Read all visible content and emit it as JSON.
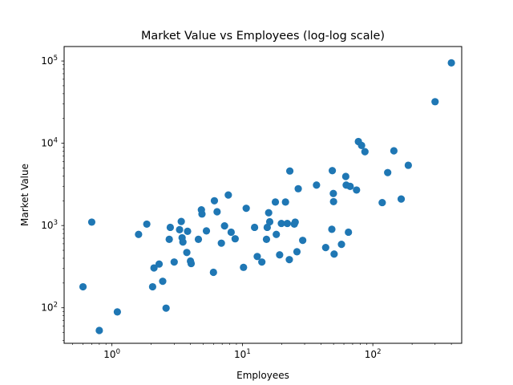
{
  "chart_data": {
    "type": "scatter",
    "title": "Market Value vs Employees (log-log scale)",
    "xlabel": "Employees",
    "ylabel": "Market Value",
    "xscale": "log",
    "yscale": "log",
    "xlim": [
      0.43,
      480
    ],
    "ylim": [
      37,
      150000
    ],
    "grid": false,
    "marker_color": "#1f77b4",
    "x_ticks": [
      {
        "base": "10",
        "exp": "0",
        "value": 1
      },
      {
        "base": "10",
        "exp": "1",
        "value": 10
      },
      {
        "base": "10",
        "exp": "2",
        "value": 100
      }
    ],
    "y_ticks": [
      {
        "base": "10",
        "exp": "2",
        "value": 100
      },
      {
        "base": "10",
        "exp": "3",
        "value": 1000
      },
      {
        "base": "10",
        "exp": "4",
        "value": 10000
      },
      {
        "base": "10",
        "exp": "5",
        "value": 100000
      }
    ],
    "points": [
      {
        "x": 0.6,
        "y": 180
      },
      {
        "x": 0.7,
        "y": 1100
      },
      {
        "x": 0.8,
        "y": 53
      },
      {
        "x": 1.1,
        "y": 89
      },
      {
        "x": 1.6,
        "y": 780
      },
      {
        "x": 1.85,
        "y": 1040
      },
      {
        "x": 2.05,
        "y": 180
      },
      {
        "x": 2.1,
        "y": 305
      },
      {
        "x": 2.3,
        "y": 340
      },
      {
        "x": 2.45,
        "y": 210
      },
      {
        "x": 2.6,
        "y": 99
      },
      {
        "x": 2.75,
        "y": 680
      },
      {
        "x": 2.8,
        "y": 950
      },
      {
        "x": 3.0,
        "y": 360
      },
      {
        "x": 3.3,
        "y": 890
      },
      {
        "x": 3.4,
        "y": 1120
      },
      {
        "x": 3.45,
        "y": 710
      },
      {
        "x": 3.5,
        "y": 630
      },
      {
        "x": 3.75,
        "y": 470
      },
      {
        "x": 3.8,
        "y": 850
      },
      {
        "x": 4.0,
        "y": 370
      },
      {
        "x": 4.05,
        "y": 345
      },
      {
        "x": 4.6,
        "y": 680
      },
      {
        "x": 4.85,
        "y": 1550
      },
      {
        "x": 4.9,
        "y": 1380
      },
      {
        "x": 5.3,
        "y": 860
      },
      {
        "x": 6.0,
        "y": 270
      },
      {
        "x": 6.1,
        "y": 2000
      },
      {
        "x": 6.4,
        "y": 1470
      },
      {
        "x": 6.9,
        "y": 610
      },
      {
        "x": 7.3,
        "y": 990
      },
      {
        "x": 7.8,
        "y": 2350
      },
      {
        "x": 8.2,
        "y": 830
      },
      {
        "x": 8.8,
        "y": 690
      },
      {
        "x": 10.2,
        "y": 310
      },
      {
        "x": 10.7,
        "y": 1620
      },
      {
        "x": 12.4,
        "y": 950
      },
      {
        "x": 13.0,
        "y": 420
      },
      {
        "x": 14.1,
        "y": 360
      },
      {
        "x": 15.3,
        "y": 680
      },
      {
        "x": 15.5,
        "y": 950
      },
      {
        "x": 15.9,
        "y": 1430
      },
      {
        "x": 16.2,
        "y": 1110
      },
      {
        "x": 17.9,
        "y": 1930
      },
      {
        "x": 18.2,
        "y": 780
      },
      {
        "x": 19.3,
        "y": 440
      },
      {
        "x": 19.9,
        "y": 1060
      },
      {
        "x": 21.4,
        "y": 1930
      },
      {
        "x": 22.1,
        "y": 1060
      },
      {
        "x": 22.9,
        "y": 385
      },
      {
        "x": 23.1,
        "y": 4600
      },
      {
        "x": 25.0,
        "y": 1040
      },
      {
        "x": 25.4,
        "y": 1100
      },
      {
        "x": 26.2,
        "y": 480
      },
      {
        "x": 26.8,
        "y": 2800
      },
      {
        "x": 29.0,
        "y": 660
      },
      {
        "x": 37.0,
        "y": 3100
      },
      {
        "x": 43.5,
        "y": 540
      },
      {
        "x": 48.5,
        "y": 900
      },
      {
        "x": 48.9,
        "y": 4650
      },
      {
        "x": 49.8,
        "y": 2450
      },
      {
        "x": 50.0,
        "y": 1950
      },
      {
        "x": 50.5,
        "y": 450
      },
      {
        "x": 57.5,
        "y": 590
      },
      {
        "x": 62.0,
        "y": 3950
      },
      {
        "x": 62.5,
        "y": 3100
      },
      {
        "x": 65.0,
        "y": 830
      },
      {
        "x": 67.0,
        "y": 2990
      },
      {
        "x": 75.0,
        "y": 2700
      },
      {
        "x": 77.5,
        "y": 10500
      },
      {
        "x": 82.0,
        "y": 9400
      },
      {
        "x": 87.0,
        "y": 7900
      },
      {
        "x": 118.0,
        "y": 1900
      },
      {
        "x": 130.0,
        "y": 4400
      },
      {
        "x": 145.0,
        "y": 8100
      },
      {
        "x": 165.0,
        "y": 2100
      },
      {
        "x": 187.0,
        "y": 5400
      },
      {
        "x": 300.0,
        "y": 32000
      },
      {
        "x": 400.0,
        "y": 95000
      }
    ]
  }
}
